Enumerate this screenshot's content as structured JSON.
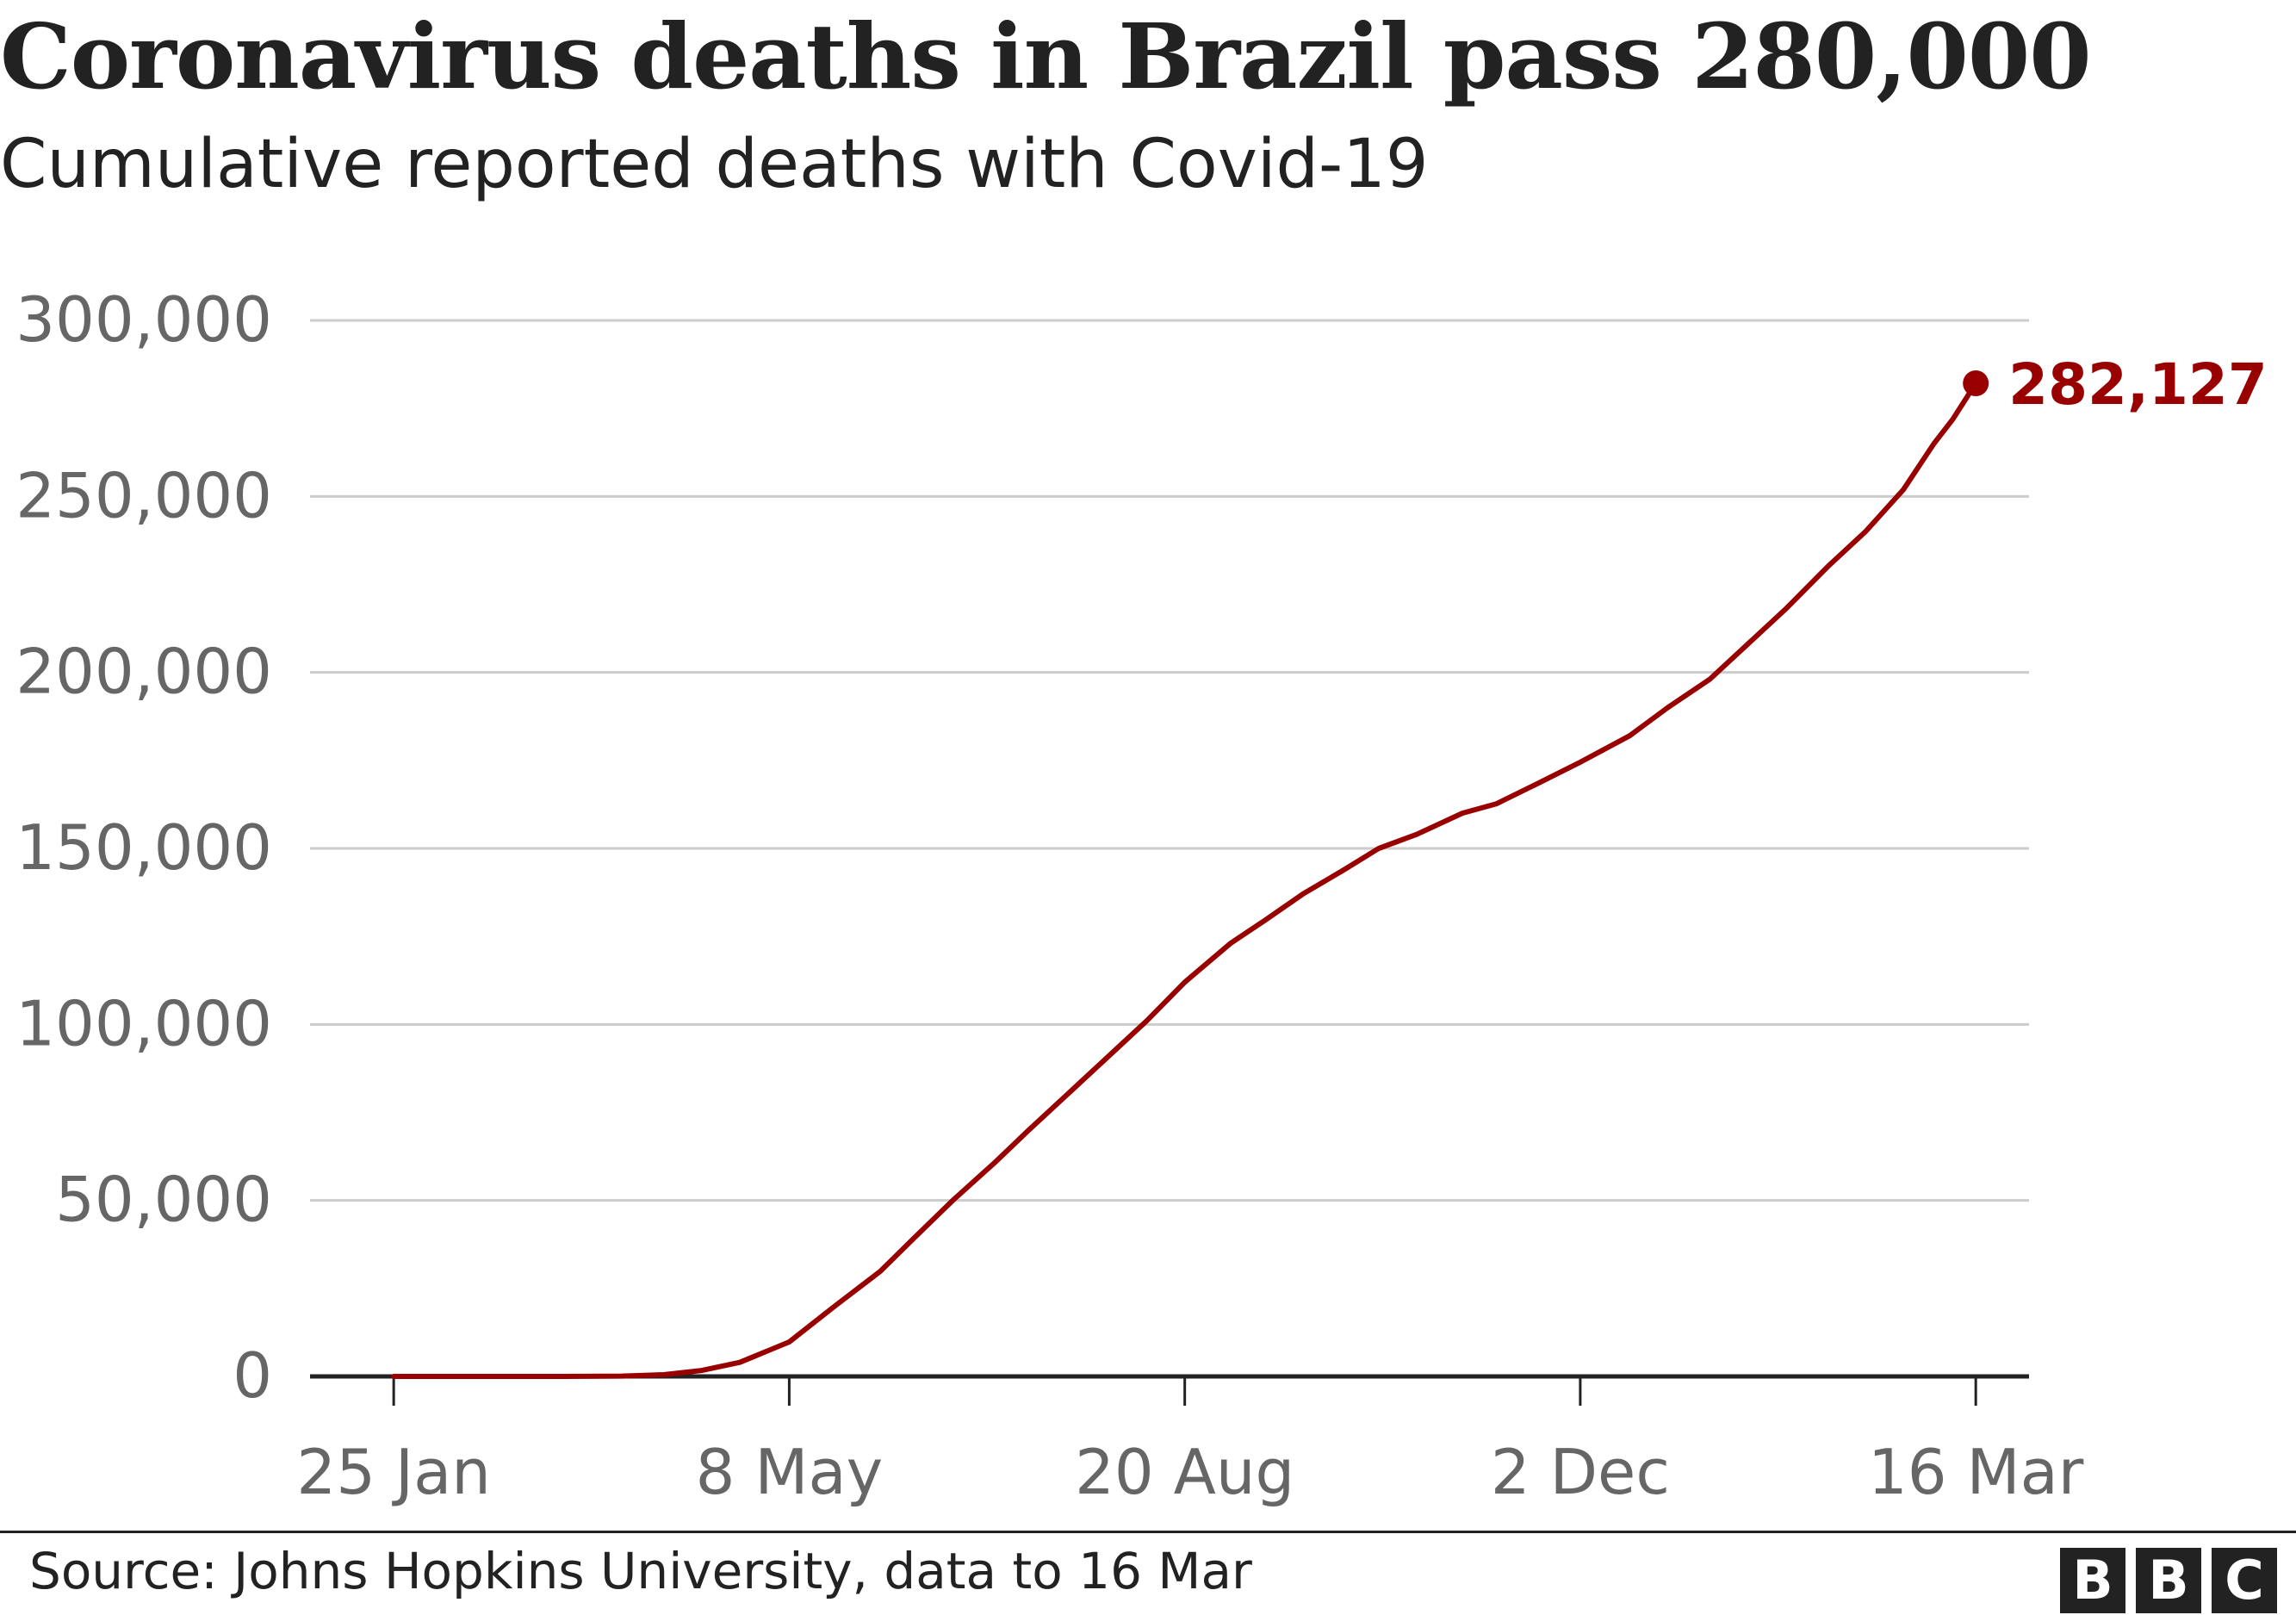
{
  "header": {
    "title": "Coronavirus deaths in Brazil pass 280,000",
    "subtitle": "Cumulative reported deaths with Covid-19"
  },
  "footer": {
    "source": "Source: Johns Hopkins University, data to 16 Mar",
    "logo_letters": [
      "B",
      "B",
      "C"
    ]
  },
  "colors": {
    "series": "#990000",
    "grid": "#cccccc",
    "axis": "#222222",
    "tick_text": "#666666",
    "text": "#222222"
  },
  "chart_data": {
    "type": "line",
    "title": "Coronavirus deaths in Brazil pass 280,000",
    "subtitle": "Cumulative reported deaths with Covid-19",
    "xlabel": "",
    "ylabel": "",
    "ylim": [
      0,
      300000
    ],
    "xlim": [
      "2020-01-03",
      "2021-03-30"
    ],
    "yticks": [
      0,
      50000,
      100000,
      150000,
      200000,
      250000,
      300000
    ],
    "ytick_labels": [
      "0",
      "50,000",
      "100,000",
      "150,000",
      "200,000",
      "250,000",
      "300,000"
    ],
    "xticks": [
      "2020-01-25",
      "2020-05-08",
      "2020-08-20",
      "2020-12-02",
      "2021-03-16"
    ],
    "xtick_labels": [
      "25 Jan",
      "8 May",
      "20 Aug",
      "2 Dec",
      "16 Mar"
    ],
    "grid": true,
    "legend": "none",
    "series": [
      {
        "color": "#990000",
        "x": [
          "2020-01-25",
          "2020-03-10",
          "2020-03-25",
          "2020-04-05",
          "2020-04-15",
          "2020-04-25",
          "2020-05-08",
          "2020-05-20",
          "2020-06-01",
          "2020-06-10",
          "2020-06-20",
          "2020-07-01",
          "2020-07-10",
          "2020-07-20",
          "2020-08-01",
          "2020-08-10",
          "2020-08-20",
          "2020-09-01",
          "2020-09-10",
          "2020-09-20",
          "2020-10-01",
          "2020-10-10",
          "2020-10-20",
          "2020-11-01",
          "2020-11-10",
          "2020-11-20",
          "2020-12-02",
          "2020-12-15",
          "2020-12-25",
          "2021-01-05",
          "2021-01-15",
          "2021-01-25",
          "2021-02-05",
          "2021-02-15",
          "2021-02-25",
          "2021-03-05",
          "2021-03-10",
          "2021-03-16"
        ],
        "values": [
          0,
          0,
          100,
          500,
          1700,
          4000,
          9800,
          20000,
          29900,
          39500,
          50000,
          60700,
          70000,
          80000,
          92000,
          101000,
          112000,
          123000,
          129500,
          137000,
          144000,
          150000,
          154000,
          160000,
          162700,
          168000,
          174500,
          182000,
          190000,
          198000,
          208000,
          218000,
          230000,
          240000,
          252000,
          265000,
          272000,
          282127
        ]
      }
    ],
    "annotations": [
      {
        "x": "2021-03-16",
        "y": 282127,
        "label": "282,127"
      }
    ]
  }
}
